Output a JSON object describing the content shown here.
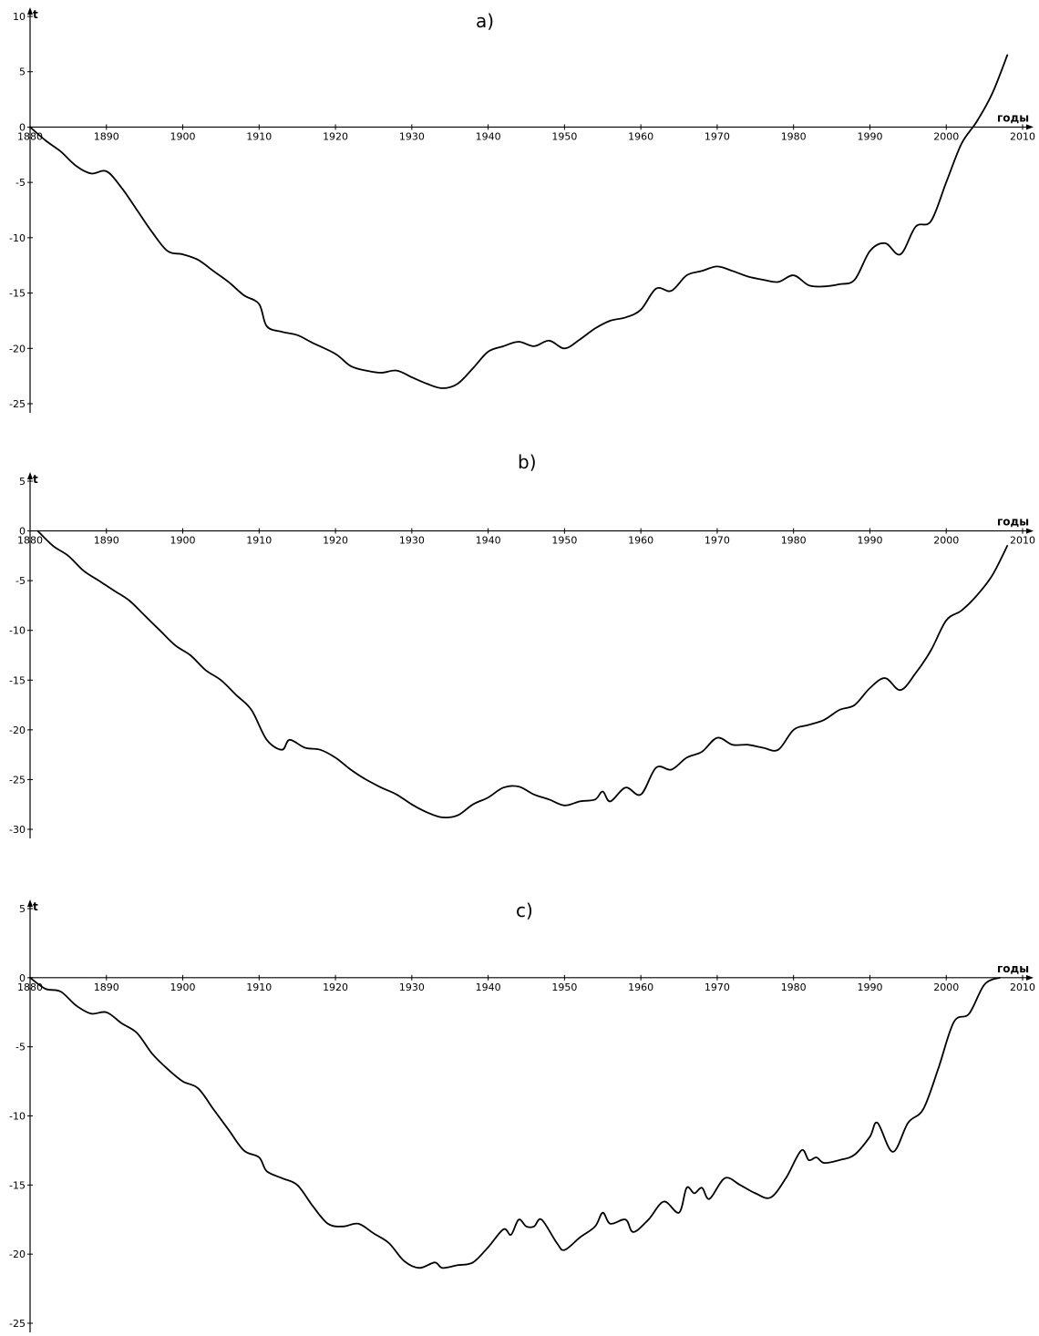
{
  "chart_data": [
    {
      "type": "line",
      "title": "a)",
      "xlabel": "годы",
      "ylabel": "t",
      "xlim": [
        1880,
        2010
      ],
      "ylim": [
        -25,
        10
      ],
      "x_ticks": [
        1880,
        1890,
        1900,
        1910,
        1920,
        1930,
        1940,
        1950,
        1960,
        1970,
        1980,
        1990,
        2000,
        2010
      ],
      "y_ticks": [
        10,
        5,
        0,
        -5,
        -10,
        -15,
        -20,
        -25
      ],
      "grid": false,
      "series": [
        {
          "x": [
            1880,
            1882,
            1884,
            1886,
            1888,
            1890,
            1892,
            1894,
            1896,
            1898,
            1900,
            1902,
            1904,
            1906,
            1908,
            1910,
            1911,
            1913,
            1915,
            1917,
            1920,
            1922,
            1924,
            1926,
            1928,
            1930,
            1932,
            1934,
            1936,
            1938,
            1940,
            1942,
            1944,
            1946,
            1948,
            1950,
            1952,
            1954,
            1956,
            1958,
            1960,
            1962,
            1964,
            1966,
            1968,
            1970,
            1972,
            1974,
            1976,
            1978,
            1980,
            1982,
            1984,
            1986,
            1988,
            1990,
            1992,
            1994,
            1996,
            1998,
            2000,
            2002,
            2004,
            2006,
            2008
          ],
          "y": [
            0,
            -1.2,
            -2.2,
            -3.5,
            -4.2,
            -4.0,
            -5.5,
            -7.5,
            -9.5,
            -11.2,
            -11.5,
            -12.0,
            -13.0,
            -14.0,
            -15.2,
            -16.0,
            -18.0,
            -18.5,
            -18.8,
            -19.5,
            -20.5,
            -21.6,
            -22.0,
            -22.2,
            -22.0,
            -22.6,
            -23.2,
            -23.6,
            -23.2,
            -21.8,
            -20.3,
            -19.8,
            -19.4,
            -19.8,
            -19.3,
            -20.0,
            -19.2,
            -18.2,
            -17.5,
            -17.2,
            -16.5,
            -14.6,
            -14.8,
            -13.4,
            -13.0,
            -12.6,
            -13.0,
            -13.5,
            -13.8,
            -14.0,
            -13.4,
            -14.3,
            -14.4,
            -14.2,
            -13.8,
            -11.2,
            -10.5,
            -11.5,
            -9.0,
            -8.5,
            -5.0,
            -1.5,
            0.5,
            3.0,
            6.5
          ]
        }
      ]
    },
    {
      "type": "line",
      "title": "b)",
      "xlabel": "годы",
      "ylabel": "t",
      "xlim": [
        1880,
        2010
      ],
      "ylim": [
        -30,
        5
      ],
      "x_ticks": [
        1880,
        1890,
        1900,
        1910,
        1920,
        1930,
        1940,
        1950,
        1960,
        1970,
        1980,
        1990,
        2000,
        2010
      ],
      "y_ticks": [
        5,
        0,
        -5,
        -10,
        -15,
        -20,
        -25,
        -30
      ],
      "grid": false,
      "series": [
        {
          "x": [
            1881,
            1883,
            1885,
            1887,
            1889,
            1891,
            1893,
            1895,
            1897,
            1899,
            1901,
            1903,
            1905,
            1907,
            1909,
            1911,
            1913,
            1914,
            1916,
            1918,
            1920,
            1922,
            1924,
            1926,
            1928,
            1930,
            1932,
            1934,
            1936,
            1938,
            1940,
            1942,
            1944,
            1946,
            1948,
            1950,
            1952,
            1954,
            1955,
            1956,
            1958,
            1960,
            1962,
            1964,
            1966,
            1968,
            1970,
            1972,
            1974,
            1976,
            1978,
            1980,
            1982,
            1984,
            1986,
            1988,
            1990,
            1992,
            1994,
            1996,
            1998,
            2000,
            2002,
            2004,
            2006,
            2008
          ],
          "y": [
            0,
            -1.5,
            -2.5,
            -4.0,
            -5.0,
            -6.0,
            -7.0,
            -8.5,
            -10.0,
            -11.5,
            -12.5,
            -14.0,
            -15.0,
            -16.5,
            -18.0,
            -21.0,
            -22.0,
            -21.0,
            -21.8,
            -22.0,
            -22.8,
            -24.0,
            -25.0,
            -25.8,
            -26.5,
            -27.5,
            -28.3,
            -28.8,
            -28.6,
            -27.5,
            -26.8,
            -25.8,
            -25.7,
            -26.5,
            -27.0,
            -27.6,
            -27.2,
            -27.0,
            -26.2,
            -27.2,
            -25.8,
            -26.5,
            -23.8,
            -24.0,
            -22.8,
            -22.2,
            -20.8,
            -21.5,
            -21.5,
            -21.8,
            -22.0,
            -20.0,
            -19.5,
            -19.0,
            -18.0,
            -17.5,
            -15.8,
            -14.8,
            -16.0,
            -14.3,
            -12.0,
            -9.0,
            -8.0,
            -6.5,
            -4.5,
            -1.5
          ]
        }
      ]
    },
    {
      "type": "line",
      "title": "c)",
      "xlabel": "годы",
      "ylabel": "t",
      "xlim": [
        1880,
        2010
      ],
      "ylim": [
        -25,
        5
      ],
      "x_ticks": [
        1880,
        1890,
        1900,
        1910,
        1920,
        1930,
        1940,
        1950,
        1960,
        1970,
        1980,
        1990,
        2000,
        2010
      ],
      "y_ticks": [
        5,
        0,
        -5,
        -10,
        -15,
        -20,
        -25
      ],
      "grid": false,
      "series": [
        {
          "x": [
            1880,
            1882,
            1884,
            1886,
            1888,
            1890,
            1892,
            1894,
            1896,
            1898,
            1900,
            1902,
            1904,
            1906,
            1908,
            1910,
            1911,
            1913,
            1915,
            1917,
            1919,
            1921,
            1923,
            1925,
            1927,
            1929,
            1931,
            1933,
            1934,
            1936,
            1938,
            1940,
            1942,
            1943,
            1944,
            1945,
            1946,
            1947,
            1949,
            1950,
            1952,
            1954,
            1955,
            1956,
            1958,
            1959,
            1961,
            1963,
            1965,
            1966,
            1967,
            1968,
            1969,
            1971,
            1973,
            1975,
            1977,
            1979,
            1981,
            1982,
            1983,
            1984,
            1986,
            1988,
            1990,
            1991,
            1993,
            1995,
            1997,
            1999,
            2001,
            2003,
            2005,
            2007
          ],
          "y": [
            0,
            -0.8,
            -1.0,
            -2.0,
            -2.6,
            -2.5,
            -3.3,
            -4.0,
            -5.5,
            -6.6,
            -7.5,
            -8.0,
            -9.5,
            -11.0,
            -12.5,
            -13.0,
            -14.0,
            -14.5,
            -15.0,
            -16.5,
            -17.8,
            -18.0,
            -17.8,
            -18.5,
            -19.2,
            -20.5,
            -21.0,
            -20.6,
            -21.0,
            -20.8,
            -20.6,
            -19.5,
            -18.2,
            -18.6,
            -17.5,
            -18.0,
            -18.0,
            -17.5,
            -19.2,
            -19.7,
            -18.8,
            -18.0,
            -17.0,
            -17.8,
            -17.5,
            -18.4,
            -17.5,
            -16.2,
            -17.0,
            -15.2,
            -15.6,
            -15.2,
            -16.0,
            -14.5,
            -15.0,
            -15.6,
            -15.9,
            -14.5,
            -12.5,
            -13.2,
            -13.0,
            -13.4,
            -13.2,
            -12.8,
            -11.5,
            -10.5,
            -12.6,
            -10.5,
            -9.5,
            -6.5,
            -3.2,
            -2.6,
            -0.5,
            0
          ]
        }
      ]
    }
  ]
}
